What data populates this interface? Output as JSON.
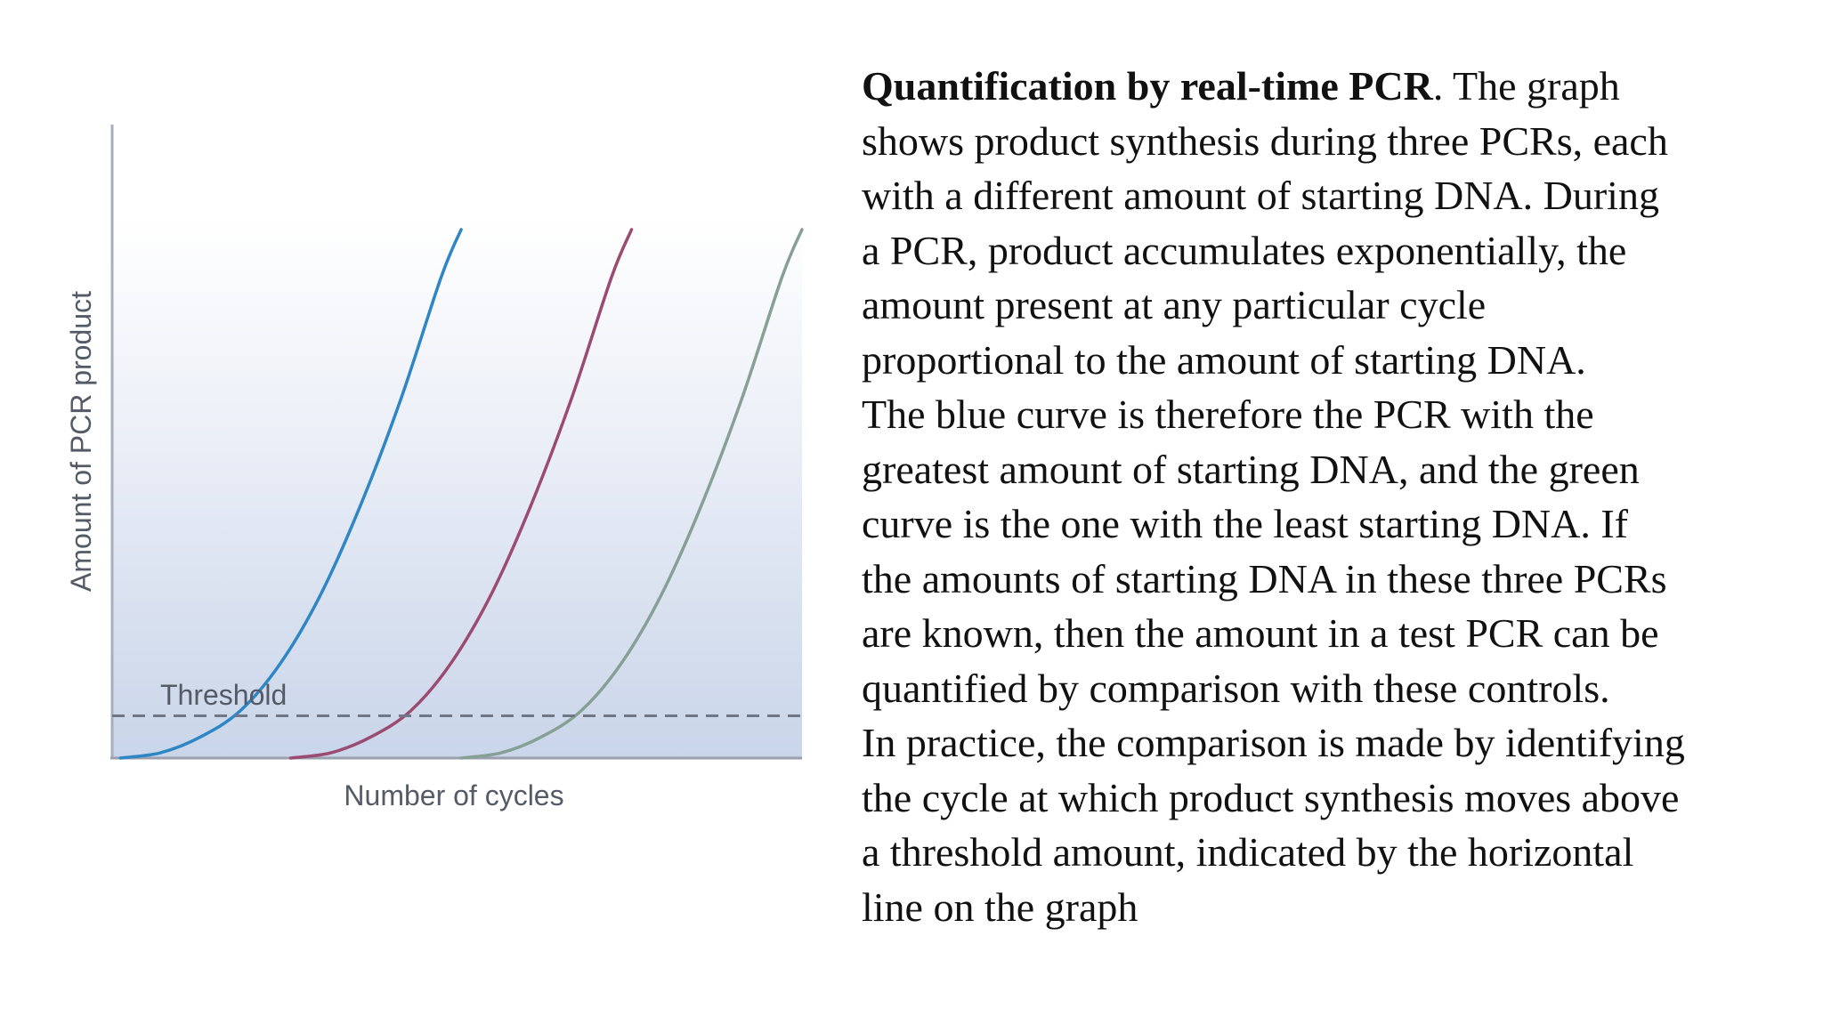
{
  "chart_data": {
    "type": "line",
    "title": "",
    "xlabel": "Number of cycles",
    "ylabel": "Amount of PCR product",
    "xlim": [
      0,
      40
    ],
    "ylim": [
      0,
      100
    ],
    "grid": false,
    "legend": "none",
    "threshold": {
      "label": "Threshold",
      "value": 8,
      "style": "dashed",
      "color": "#6f7787"
    },
    "series": [
      {
        "color": "#2f86c4",
        "x": [
          6,
          8,
          10,
          12,
          14,
          16,
          18,
          20,
          22,
          23
        ],
        "y": [
          0,
          1,
          4,
          9,
          18,
          31,
          48,
          68,
          91,
          100
        ]
      },
      {
        "color": "#9b4b72",
        "x": [
          14.5,
          16.5,
          18.5,
          20.5,
          22.5,
          24.5,
          26.5,
          28.5,
          30.5,
          31.5
        ],
        "y": [
          0,
          1,
          4,
          9,
          18,
          31,
          48,
          68,
          91,
          100
        ]
      },
      {
        "color": "#87a096",
        "x": [
          23,
          25,
          27,
          29,
          31,
          33,
          35,
          37,
          39,
          40
        ],
        "y": [
          0,
          1,
          4,
          9,
          18,
          31,
          48,
          68,
          91,
          100
        ]
      }
    ]
  },
  "caption": {
    "heading": "Quantification by real-time PCR",
    "lines": [
      ". The graph",
      "shows product synthesis during three PCRs, each",
      "with a different amount of starting DNA. During",
      "a PCR, product accumulates exponentially, the",
      "amount present at any particular cycle",
      "proportional to the amount of starting DNA.",
      "The blue curve is therefore the PCR with the",
      "greatest amount of starting DNA, and the green",
      "curve is the one with the least starting DNA. If",
      "the amounts of starting DNA in these three PCRs",
      "are known, then the amount in a test PCR can be",
      "quantified by comparison with these controls.",
      "In practice, the comparison is made by identifying",
      "the cycle at which product synthesis moves above",
      "a threshold amount, indicated by the horizontal",
      "line on the graph"
    ]
  }
}
